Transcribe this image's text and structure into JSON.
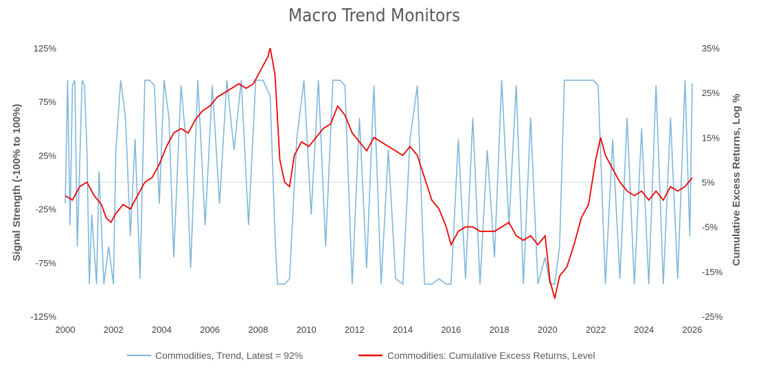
{
  "chart_data": {
    "type": "line",
    "title": "Macro Trend Monitors",
    "y_left_label": "Signal Strength (-100% to 100%)",
    "y_right_label": "Cumulative Excess Returns, Log %",
    "x_range": [
      2000,
      2026
    ],
    "x_ticks": [
      "2000",
      "2002",
      "2004",
      "2006",
      "2008",
      "2010",
      "2012",
      "2014",
      "2016",
      "2018",
      "2020",
      "2022",
      "2024",
      "2026"
    ],
    "y_left_range": [
      -125,
      125
    ],
    "y_left_ticks": [
      "125%",
      "75%",
      "25%",
      "-25%",
      "-75%",
      "-125%"
    ],
    "y_right_range": [
      -25,
      35
    ],
    "y_right_ticks": [
      "35%",
      "25%",
      "15%",
      "5%",
      "-5%",
      "-15%",
      "-25%"
    ],
    "grid": false,
    "zero_line": true,
    "legend_position": "bottom",
    "colors": {
      "trend": "#7eb6dd",
      "returns": "#ee0000",
      "zero_line": "#c9dce8"
    },
    "series": [
      {
        "name": "Commodities, Trend, Latest = 92%",
        "axis": "left",
        "x": [
          2000.0,
          2000.1,
          2000.2,
          2000.3,
          2000.4,
          2000.5,
          2000.7,
          2000.8,
          2000.9,
          2001.0,
          2001.1,
          2001.3,
          2001.4,
          2001.6,
          2001.8,
          2002.0,
          2002.1,
          2002.3,
          2002.5,
          2002.7,
          2002.9,
          2003.1,
          2003.3,
          2003.5,
          2003.7,
          2003.9,
          2004.1,
          2004.3,
          2004.5,
          2004.8,
          2005.0,
          2005.2,
          2005.5,
          2005.8,
          2006.1,
          2006.4,
          2006.7,
          2007.0,
          2007.3,
          2007.6,
          2007.9,
          2008.2,
          2008.5,
          2008.7,
          2008.8,
          2009.1,
          2009.3,
          2009.6,
          2009.9,
          2010.2,
          2010.5,
          2010.8,
          2011.1,
          2011.4,
          2011.6,
          2011.9,
          2012.2,
          2012.5,
          2012.8,
          2013.1,
          2013.4,
          2013.7,
          2014.0,
          2014.3,
          2014.6,
          2014.9,
          2015.2,
          2015.5,
          2015.8,
          2016.0,
          2016.3,
          2016.6,
          2016.9,
          2017.2,
          2017.5,
          2017.8,
          2018.1,
          2018.4,
          2018.7,
          2019.0,
          2019.3,
          2019.6,
          2019.9,
          2020.1,
          2020.3,
          2020.5,
          2020.7,
          2021.0,
          2021.3,
          2021.6,
          2021.9,
          2022.1,
          2022.4,
          2022.7,
          2023.0,
          2023.3,
          2023.6,
          2023.9,
          2024.2,
          2024.5,
          2024.8,
          2025.1,
          2025.4,
          2025.7,
          2025.9,
          2026.0
        ],
        "values": [
          -20,
          95,
          -40,
          90,
          95,
          -60,
          95,
          90,
          30,
          -95,
          -30,
          -95,
          10,
          -95,
          -60,
          -95,
          30,
          95,
          60,
          -50,
          40,
          -90,
          95,
          95,
          90,
          -20,
          95,
          60,
          -70,
          90,
          40,
          -80,
          95,
          -40,
          90,
          -20,
          95,
          30,
          95,
          -40,
          95,
          95,
          80,
          -50,
          -95,
          -95,
          -90,
          40,
          95,
          -30,
          95,
          -60,
          95,
          95,
          90,
          -95,
          60,
          -80,
          90,
          -95,
          30,
          -90,
          -95,
          40,
          90,
          -95,
          -95,
          -90,
          -95,
          -95,
          40,
          -90,
          60,
          -95,
          30,
          -70,
          95,
          -40,
          90,
          -95,
          60,
          -95,
          -70,
          -95,
          -95,
          -60,
          95,
          95,
          95,
          95,
          95,
          90,
          -95,
          40,
          -90,
          60,
          -95,
          50,
          -95,
          90,
          -95,
          60,
          -90,
          95,
          -50,
          92
        ]
      },
      {
        "name": "Commodities: Cumulative Excess Returns, Level",
        "axis": "right",
        "x": [
          2000.0,
          2000.3,
          2000.6,
          2000.9,
          2001.2,
          2001.5,
          2001.7,
          2001.9,
          2002.1,
          2002.4,
          2002.7,
          2003.0,
          2003.3,
          2003.6,
          2003.9,
          2004.2,
          2004.5,
          2004.8,
          2005.1,
          2005.4,
          2005.7,
          2006.0,
          2006.3,
          2006.6,
          2006.9,
          2007.2,
          2007.5,
          2007.8,
          2008.0,
          2008.2,
          2008.4,
          2008.5,
          2008.7,
          2008.9,
          2009.1,
          2009.3,
          2009.5,
          2009.8,
          2010.1,
          2010.4,
          2010.7,
          2011.0,
          2011.3,
          2011.6,
          2011.9,
          2012.2,
          2012.5,
          2012.8,
          2013.1,
          2013.4,
          2013.7,
          2014.0,
          2014.3,
          2014.6,
          2014.9,
          2015.2,
          2015.5,
          2015.8,
          2016.0,
          2016.3,
          2016.6,
          2016.9,
          2017.2,
          2017.5,
          2017.8,
          2018.1,
          2018.4,
          2018.7,
          2019.0,
          2019.3,
          2019.6,
          2019.9,
          2020.1,
          2020.3,
          2020.5,
          2020.8,
          2021.1,
          2021.4,
          2021.7,
          2022.0,
          2022.2,
          2022.4,
          2022.7,
          2023.0,
          2023.3,
          2023.6,
          2023.9,
          2024.2,
          2024.5,
          2024.8,
          2025.1,
          2025.4,
          2025.7,
          2026.0
        ],
        "values": [
          2,
          1,
          4,
          5,
          2,
          0,
          -3,
          -4,
          -2,
          0,
          -1,
          2,
          5,
          6,
          9,
          13,
          16,
          17,
          16,
          19,
          21,
          22,
          24,
          25,
          26,
          27,
          26,
          27,
          29,
          31,
          33,
          35,
          29,
          10,
          5,
          4,
          11,
          14,
          13,
          15,
          17,
          18,
          22,
          20,
          16,
          14,
          12,
          15,
          14,
          13,
          12,
          11,
          13,
          11,
          6,
          1,
          -1,
          -5,
          -9,
          -6,
          -5,
          -5,
          -6,
          -6,
          -6,
          -5,
          -4,
          -7,
          -8,
          -7,
          -9,
          -7,
          -17,
          -21,
          -16,
          -14,
          -9,
          -3,
          0,
          10,
          15,
          11,
          8,
          5,
          3,
          2,
          3,
          1,
          3,
          1,
          4,
          3,
          4,
          6
        ]
      }
    ]
  }
}
